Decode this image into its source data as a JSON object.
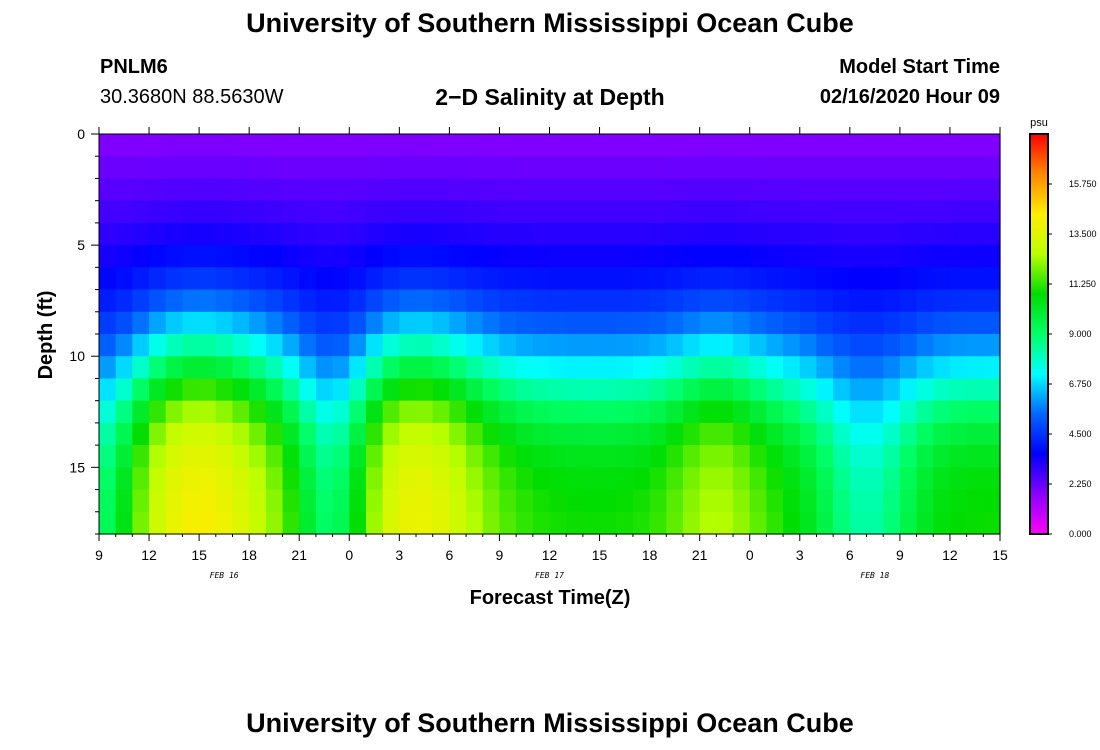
{
  "header": {
    "title": "University of Southern Mississippi Ocean Cube",
    "station_id": "PNLM6",
    "coordinates": "30.3680N 88.5630W",
    "chart_title": "2−D Salinity at Depth",
    "model_label": "Model Start Time",
    "model_time": "02/16/2020 Hour 09"
  },
  "footer": {
    "title": "University of Southern Mississippi Ocean Cube"
  },
  "chart_data": {
    "type": "heatmap",
    "title": "2−D Salinity at Depth",
    "xlabel": "Forecast Time(Z)",
    "ylabel": "Depth (ft)",
    "x_ticks": [
      "9",
      "12",
      "15",
      "18",
      "21",
      "0",
      "3",
      "6",
      "9",
      "12",
      "15",
      "18",
      "21",
      "0",
      "3",
      "6",
      "9",
      "12",
      "15"
    ],
    "x_range_hours": [
      0,
      54
    ],
    "date_labels": [
      {
        "text": "FEB 16",
        "hour": 7.5
      },
      {
        "text": "FEB 17",
        "hour": 27
      },
      {
        "text": "FEB 18",
        "hour": 46.5
      }
    ],
    "y_ticks": [
      "0",
      "5",
      "10",
      "15"
    ],
    "y_range_ft": [
      0,
      18
    ],
    "colorbar": {
      "unit": "psu",
      "ticks": [
        "15.750",
        "13.500",
        "11.250",
        "9.000",
        "6.750",
        "4.500",
        "2.250",
        "0.000"
      ],
      "range": [
        0,
        18
      ],
      "colors": [
        "#ff00ff",
        "#8a00ff",
        "#0000ff",
        "#0066ff",
        "#00ffff",
        "#00ff66",
        "#00dd00",
        "#bbff00",
        "#ffee00",
        "#ff8800",
        "#ff0000"
      ]
    },
    "z_summary": {
      "description": "salinity (psu) by forecast hour and depth; low fresh surface layer, saline bottom layer",
      "bottom_peak_hours": [
        6,
        19,
        37
      ],
      "bottom_trough_hours": [
        0,
        14,
        46
      ]
    }
  }
}
